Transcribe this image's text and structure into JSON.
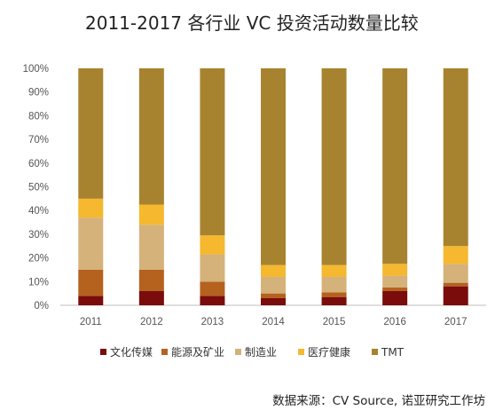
{
  "title": "2011-2017 各行业 VC 投资活动数量比较",
  "source": "数据来源：CV Source, 诺亚研究工作坊",
  "chart_data": {
    "type": "bar",
    "stacked": true,
    "title": "2011-2017 各行业 VC 投资活动数量比较",
    "xlabel": "",
    "ylabel": "",
    "categories": [
      "2011",
      "2012",
      "2013",
      "2014",
      "2015",
      "2016",
      "2017"
    ],
    "y_ticks": [
      "0%",
      "10%",
      "20%",
      "30%",
      "40%",
      "50%",
      "60%",
      "70%",
      "80%",
      "90%",
      "100%"
    ],
    "ylim": [
      0,
      100
    ],
    "grid": false,
    "legend_position": "bottom",
    "series": [
      {
        "name": "文化传媒",
        "color": "#7a0c0c",
        "values": [
          4,
          6,
          4,
          3,
          3.5,
          6,
          8
        ]
      },
      {
        "name": "能源及矿业",
        "color": "#b5621e",
        "values": [
          11,
          9,
          6,
          2,
          2,
          1.5,
          1.5
        ]
      },
      {
        "name": "制造业",
        "color": "#d4b27a",
        "values": [
          22,
          19,
          11.5,
          7,
          6.5,
          5,
          8
        ]
      },
      {
        "name": "医疗健康",
        "color": "#f5b82e",
        "values": [
          8,
          8.5,
          8,
          5,
          5,
          5,
          7.5
        ]
      },
      {
        "name": "TMT",
        "color": "#a8832f",
        "values": [
          55,
          57.5,
          70.5,
          83,
          83,
          82.5,
          75
        ]
      }
    ]
  }
}
